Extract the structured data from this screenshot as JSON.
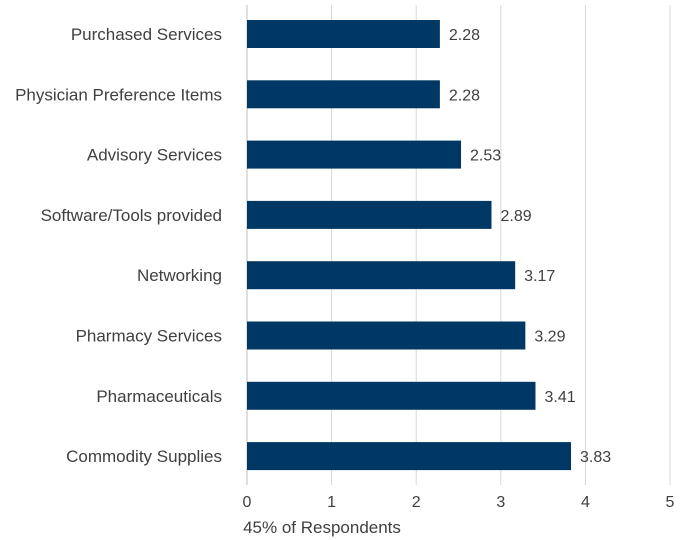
{
  "chart_data": {
    "type": "bar",
    "orientation": "horizontal",
    "categories": [
      "Purchased Services",
      "Physician Preference Items",
      "Advisory Services",
      "Software/Tools provided",
      "Networking",
      "Pharmacy Services",
      "Pharmaceuticals",
      "Commodity Supplies"
    ],
    "values": [
      2.28,
      2.28,
      2.53,
      2.89,
      3.17,
      3.29,
      3.41,
      3.83
    ],
    "xlabel": "45% of Respondents",
    "ylabel": "",
    "xlim": [
      0,
      5
    ],
    "xticks": [
      "0",
      "1",
      "2",
      "3",
      "4",
      "5"
    ],
    "grid": "vertical",
    "colors": {
      "bar": "#003865",
      "grid": "#d9d9d9",
      "text": "#404040"
    }
  }
}
